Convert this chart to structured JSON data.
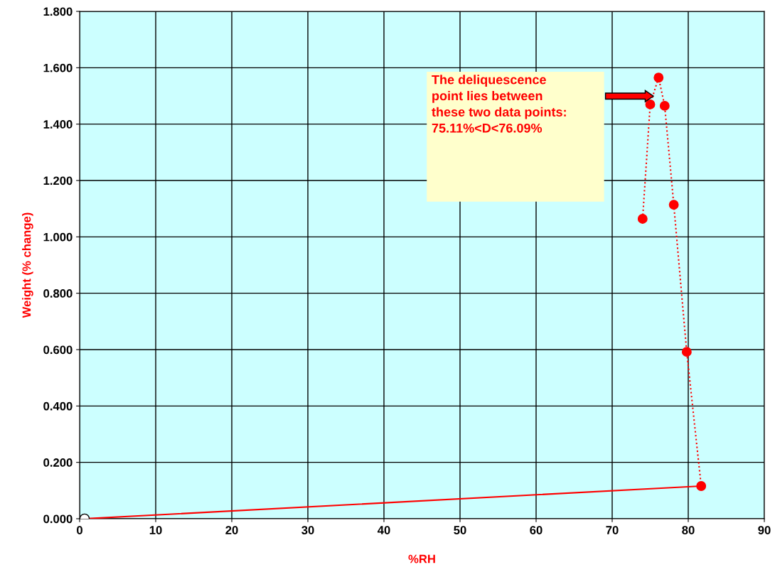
{
  "chart_data": {
    "type": "line",
    "xlabel": "%RH",
    "ylabel": "Weight (% change)",
    "series": [
      {
        "color": "#ff0000",
        "x": [
          74.0,
          75.0,
          76.1,
          76.9,
          78.1,
          79.8,
          81.7
        ],
        "values": [
          1.064,
          1.47,
          1.565,
          1.465,
          1.114,
          0.592,
          0.116
        ],
        "marker": "circle",
        "line_style": "dotted"
      },
      {
        "color": "#ff0000",
        "x": [
          81.7,
          0.65
        ],
        "values": [
          0.116,
          0.0
        ],
        "marker": "none",
        "line_style": "solid"
      },
      {
        "type": "scatter",
        "color": "#ffffff",
        "x": [
          0.65
        ],
        "values": [
          0.0
        ],
        "marker": "circle"
      }
    ],
    "annotations": [
      "The deliquescence\npoint lies between\nthese two data points:\n75.11%<D<76.09%"
    ],
    "xlim": [
      0,
      90
    ],
    "xticks": [
      0,
      10,
      20,
      30,
      40,
      50,
      60,
      70,
      80,
      90
    ],
    "ylim": [
      0,
      1.8
    ],
    "yticks": [
      {
        "value": 0,
        "label": "0.000"
      },
      {
        "value": 0.2,
        "label": "0.200"
      },
      {
        "value": 0.4,
        "label": "0.400"
      },
      {
        "value": 0.6,
        "label": "0.600"
      },
      {
        "value": 0.8,
        "label": "0.800"
      },
      {
        "value": 1.0,
        "label": "1.000"
      },
      {
        "value": 1.2,
        "label": "1.200"
      },
      {
        "value": 1.4,
        "label": "1.400"
      },
      {
        "value": 1.6,
        "label": "1.600"
      },
      {
        "value": 1.8,
        "label": "1.800"
      }
    ],
    "grid": true,
    "legend": false
  }
}
